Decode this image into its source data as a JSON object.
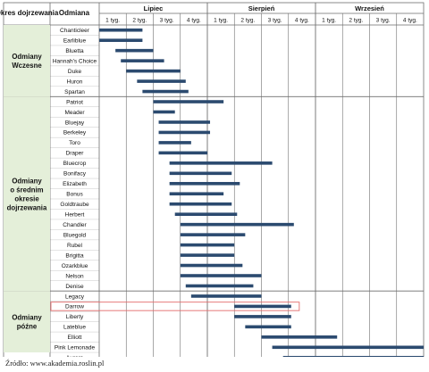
{
  "header": {
    "period_label": "Okres dojrzewania",
    "variety_label": "Odmiana"
  },
  "months": [
    "Lipiec",
    "Sierpień",
    "Wrzesień"
  ],
  "weeks": [
    "1 tyg.",
    "2 tyg.",
    "3 tyg.",
    "4 tyg."
  ],
  "source": "Źródło: www.akademia.roslin.pl",
  "colors": {
    "bar": "#2b4a6f",
    "group_bg": "#e4efd9",
    "highlight": "#e36b6b",
    "grid": "#6e6e6e"
  },
  "chart_data": {
    "type": "bar",
    "x_unit": "weeks (0 = start of Lipiec week 1)",
    "xlim": [
      0,
      12
    ],
    "groups": [
      {
        "name": "Odmiany Wczesne",
        "from": 0,
        "to": 7
      },
      {
        "name": "Odmiany o średnim okresie dojrzewania",
        "from": 7,
        "to": 26
      },
      {
        "name": "Odmiany późne",
        "from": 26,
        "to": 32
      }
    ],
    "varieties": [
      {
        "name": "Chanticleer",
        "start": 0.0,
        "end": 1.6
      },
      {
        "name": "Earliblue",
        "start": 0.0,
        "end": 1.6
      },
      {
        "name": "Bluetta",
        "start": 0.6,
        "end": 2.0
      },
      {
        "name": "Hannah's Choice",
        "start": 0.8,
        "end": 2.4
      },
      {
        "name": "Duke",
        "start": 1.0,
        "end": 3.0
      },
      {
        "name": "Huron",
        "start": 1.4,
        "end": 3.2
      },
      {
        "name": "Spartan",
        "start": 1.6,
        "end": 3.3
      },
      {
        "name": "Patriot",
        "start": 2.0,
        "end": 4.6
      },
      {
        "name": "Meader",
        "start": 2.0,
        "end": 2.8
      },
      {
        "name": "Bluejay",
        "start": 2.2,
        "end": 4.1
      },
      {
        "name": "Berkeley",
        "start": 2.2,
        "end": 4.1
      },
      {
        "name": "Toro",
        "start": 2.2,
        "end": 3.4
      },
      {
        "name": "Draper",
        "start": 2.2,
        "end": 4.0
      },
      {
        "name": "Bluecrop",
        "start": 2.6,
        "end": 6.4
      },
      {
        "name": "Bonifacy",
        "start": 2.6,
        "end": 4.9
      },
      {
        "name": "Elizabeth",
        "start": 2.6,
        "end": 5.2
      },
      {
        "name": "Bonus",
        "start": 2.6,
        "end": 4.6
      },
      {
        "name": "Goldtraube",
        "start": 2.6,
        "end": 4.9
      },
      {
        "name": "Herbert",
        "start": 2.8,
        "end": 5.1
      },
      {
        "name": "Chandler",
        "start": 3.0,
        "end": 7.2
      },
      {
        "name": "Bluegold",
        "start": 3.0,
        "end": 5.4
      },
      {
        "name": "Rubel",
        "start": 3.0,
        "end": 5.0
      },
      {
        "name": "Brigitta",
        "start": 3.0,
        "end": 5.0
      },
      {
        "name": "Ozarkblue",
        "start": 3.0,
        "end": 5.3
      },
      {
        "name": "Nelson",
        "start": 3.0,
        "end": 6.0
      },
      {
        "name": "Denise",
        "start": 3.2,
        "end": 5.7
      },
      {
        "name": "Legacy",
        "start": 3.4,
        "end": 6.0
      },
      {
        "name": "Darrow",
        "start": 5.0,
        "end": 7.1,
        "highlight": true
      },
      {
        "name": "Liberty",
        "start": 5.0,
        "end": 7.1
      },
      {
        "name": "Lateblue",
        "start": 5.4,
        "end": 7.1
      },
      {
        "name": "Elliott",
        "start": 6.0,
        "end": 8.8
      },
      {
        "name": "Pink Lemonade",
        "start": 6.4,
        "end": 12.0
      },
      {
        "name": "Aurora",
        "start": 6.8,
        "end": 12.0
      }
    ]
  }
}
